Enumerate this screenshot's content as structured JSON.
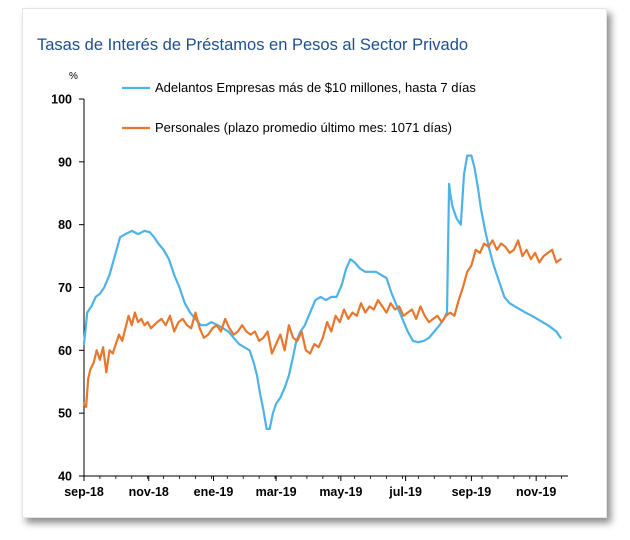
{
  "chart_data": {
    "type": "line",
    "title": "Tasas de Interés de Préstamos en Pesos al Sector Privado",
    "ylabel": "%",
    "xlabel": "",
    "ylim": [
      40,
      100
    ],
    "yticks": [
      "40",
      "50",
      "60",
      "70",
      "80",
      "90",
      "100"
    ],
    "xticks": [
      "sep-18",
      "nov-18",
      "ene-19",
      "mar-19",
      "may-19",
      "jul-19",
      "sep-19",
      "nov-19"
    ],
    "x_range": [
      "2018-09-01",
      "2019-12-01"
    ],
    "grid": false,
    "legend_position": "top",
    "series": [
      {
        "name": "Adelantos Empresas más de $10 millones, hasta 7 días",
        "color": "#4db3e6",
        "x": [
          "2018-09-01",
          "2018-09-04",
          "2018-09-08",
          "2018-09-12",
          "2018-09-16",
          "2018-09-20",
          "2018-09-25",
          "2018-09-30",
          "2018-10-05",
          "2018-10-10",
          "2018-10-16",
          "2018-10-22",
          "2018-10-28",
          "2018-11-02",
          "2018-11-06",
          "2018-11-10",
          "2018-11-15",
          "2018-11-20",
          "2018-11-25",
          "2018-11-30",
          "2018-12-05",
          "2018-12-10",
          "2018-12-15",
          "2018-12-20",
          "2018-12-25",
          "2018-12-30",
          "2019-01-05",
          "2019-01-10",
          "2019-01-15",
          "2019-01-20",
          "2019-01-25",
          "2019-01-30",
          "2019-02-04",
          "2019-02-08",
          "2019-02-11",
          "2019-02-14",
          "2019-02-17",
          "2019-02-20",
          "2019-02-23",
          "2019-02-26",
          "2019-03-01",
          "2019-03-05",
          "2019-03-09",
          "2019-03-13",
          "2019-03-17",
          "2019-03-20",
          "2019-03-24",
          "2019-03-28",
          "2019-04-02",
          "2019-04-07",
          "2019-04-12",
          "2019-04-17",
          "2019-04-22",
          "2019-04-27",
          "2019-05-02",
          "2019-05-06",
          "2019-05-10",
          "2019-05-14",
          "2019-05-19",
          "2019-05-24",
          "2019-05-29",
          "2019-06-03",
          "2019-06-08",
          "2019-06-13",
          "2019-06-18",
          "2019-06-23",
          "2019-06-28",
          "2019-07-03",
          "2019-07-08",
          "2019-07-13",
          "2019-07-18",
          "2019-07-23",
          "2019-07-28",
          "2019-08-02",
          "2019-08-06",
          "2019-08-09",
          "2019-08-11",
          "2019-08-12",
          "2019-08-14",
          "2019-08-16",
          "2019-08-18",
          "2019-08-20",
          "2019-08-22",
          "2019-08-25",
          "2019-08-28",
          "2019-09-01",
          "2019-09-04",
          "2019-09-07",
          "2019-09-10",
          "2019-09-14",
          "2019-09-18",
          "2019-09-22",
          "2019-09-27",
          "2019-10-02",
          "2019-10-07",
          "2019-10-12",
          "2019-10-17",
          "2019-10-22",
          "2019-10-28",
          "2019-11-02",
          "2019-11-07",
          "2019-11-12",
          "2019-11-16",
          "2019-11-20",
          "2019-11-24"
        ],
        "values": [
          61.0,
          66.0,
          67.0,
          68.5,
          69.0,
          70.0,
          72.0,
          75.0,
          78.0,
          78.5,
          79.0,
          78.5,
          79.0,
          78.8,
          78.0,
          77.0,
          76.0,
          74.5,
          72.0,
          70.0,
          67.5,
          66.0,
          65.0,
          64.0,
          64.0,
          64.5,
          64.0,
          63.5,
          63.0,
          62.0,
          61.0,
          60.5,
          60.0,
          58.0,
          56.0,
          53.0,
          50.5,
          47.5,
          47.5,
          50.0,
          51.5,
          52.5,
          54.0,
          56.0,
          59.0,
          61.5,
          63.0,
          64.0,
          66.0,
          68.0,
          68.5,
          68.0,
          68.5,
          68.5,
          70.5,
          73.0,
          74.5,
          74.0,
          73.0,
          72.5,
          72.5,
          72.5,
          72.0,
          71.5,
          69.0,
          67.0,
          65.0,
          63.0,
          61.5,
          61.3,
          61.5,
          62.0,
          63.0,
          64.0,
          65.0,
          66.0,
          86.5,
          85.0,
          83.0,
          82.0,
          81.0,
          80.5,
          80.0,
          88.0,
          91.0,
          91.0,
          89.0,
          86.0,
          82.5,
          79.0,
          76.0,
          73.5,
          71.0,
          68.5,
          67.5,
          67.0,
          66.5,
          66.0,
          65.5,
          65.0,
          64.5,
          64.0,
          63.5,
          63.0,
          62.0
        ]
      },
      {
        "name": "Personales (plazo promedio último mes: 1071 días)",
        "color": "#e8772e",
        "x": [
          "2018-09-01",
          "2018-09-03",
          "2018-09-05",
          "2018-09-07",
          "2018-09-10",
          "2018-09-13",
          "2018-09-16",
          "2018-09-19",
          "2018-09-22",
          "2018-09-25",
          "2018-09-28",
          "2018-10-01",
          "2018-10-04",
          "2018-10-07",
          "2018-10-10",
          "2018-10-13",
          "2018-10-16",
          "2018-10-19",
          "2018-10-22",
          "2018-10-25",
          "2018-10-28",
          "2018-10-31",
          "2018-11-03",
          "2018-11-06",
          "2018-11-09",
          "2018-11-13",
          "2018-11-17",
          "2018-11-21",
          "2018-11-25",
          "2018-11-29",
          "2018-12-03",
          "2018-12-07",
          "2018-12-11",
          "2018-12-15",
          "2018-12-19",
          "2018-12-23",
          "2018-12-27",
          "2018-12-31",
          "2019-01-04",
          "2019-01-08",
          "2019-01-12",
          "2019-01-16",
          "2019-01-20",
          "2019-01-24",
          "2019-01-28",
          "2019-02-01",
          "2019-02-05",
          "2019-02-09",
          "2019-02-13",
          "2019-02-17",
          "2019-02-21",
          "2019-02-25",
          "2019-03-01",
          "2019-03-05",
          "2019-03-09",
          "2019-03-13",
          "2019-03-17",
          "2019-03-21",
          "2019-03-25",
          "2019-03-29",
          "2019-04-02",
          "2019-04-06",
          "2019-04-10",
          "2019-04-14",
          "2019-04-18",
          "2019-04-22",
          "2019-04-26",
          "2019-04-30",
          "2019-05-04",
          "2019-05-08",
          "2019-05-12",
          "2019-05-16",
          "2019-05-20",
          "2019-05-24",
          "2019-05-28",
          "2019-06-01",
          "2019-06-05",
          "2019-06-09",
          "2019-06-13",
          "2019-06-17",
          "2019-06-21",
          "2019-06-25",
          "2019-06-29",
          "2019-07-03",
          "2019-07-07",
          "2019-07-11",
          "2019-07-15",
          "2019-07-19",
          "2019-07-23",
          "2019-07-27",
          "2019-07-31",
          "2019-08-04",
          "2019-08-08",
          "2019-08-12",
          "2019-08-16",
          "2019-08-20",
          "2019-08-24",
          "2019-08-28",
          "2019-09-01",
          "2019-09-05",
          "2019-09-09",
          "2019-09-13",
          "2019-09-17",
          "2019-09-21",
          "2019-09-25",
          "2019-09-29",
          "2019-10-03",
          "2019-10-07",
          "2019-10-11",
          "2019-10-15",
          "2019-10-19",
          "2019-10-23",
          "2019-10-27",
          "2019-10-31",
          "2019-11-04",
          "2019-11-08",
          "2019-11-12",
          "2019-11-16",
          "2019-11-20",
          "2019-11-24"
        ],
        "values": [
          51.5,
          51.0,
          55.5,
          57.0,
          58.0,
          60.0,
          58.5,
          60.5,
          56.5,
          60.0,
          59.5,
          61.0,
          62.5,
          61.5,
          63.5,
          65.5,
          64.0,
          66.0,
          64.5,
          65.0,
          64.0,
          64.5,
          63.5,
          64.0,
          64.5,
          65.0,
          64.0,
          65.5,
          63.0,
          64.5,
          65.0,
          64.0,
          63.5,
          66.0,
          63.5,
          62.0,
          62.5,
          63.5,
          64.0,
          63.0,
          65.0,
          63.5,
          62.5,
          63.0,
          64.0,
          63.0,
          62.5,
          63.0,
          61.5,
          62.0,
          63.0,
          59.5,
          61.0,
          62.5,
          60.0,
          64.0,
          62.0,
          61.5,
          63.0,
          60.0,
          59.5,
          61.0,
          60.5,
          62.0,
          64.5,
          63.0,
          65.5,
          64.5,
          66.5,
          65.0,
          66.0,
          65.5,
          67.5,
          66.0,
          67.0,
          66.5,
          68.0,
          67.0,
          66.0,
          67.5,
          66.5,
          67.0,
          65.5,
          66.0,
          66.5,
          65.0,
          67.0,
          65.5,
          64.5,
          65.0,
          65.5,
          64.5,
          65.5,
          66.0,
          65.5,
          68.0,
          70.0,
          72.5,
          73.5,
          76.0,
          75.5,
          77.0,
          76.5,
          77.5,
          76.0,
          77.0,
          76.5,
          75.5,
          76.0,
          77.5,
          75.0,
          76.0,
          74.5,
          75.5,
          74.0,
          75.0,
          75.5,
          76.0,
          74.0,
          74.5
        ]
      }
    ]
  }
}
